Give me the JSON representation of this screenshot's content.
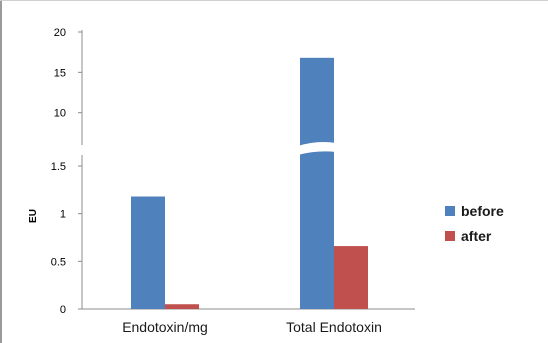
{
  "chart_data": {
    "type": "bar",
    "ylabel": "EU",
    "xlabel": "",
    "title": "",
    "axis_break": true,
    "break_segments": [
      {
        "ylim": [
          0,
          1.5
        ],
        "ticks": [
          "0",
          "0.5",
          "1",
          "1.5"
        ],
        "tick_values": [
          0,
          0.5,
          1,
          1.5
        ]
      },
      {
        "ylim": [
          5,
          20
        ],
        "ticks": [
          "10",
          "15",
          "20"
        ],
        "tick_values": [
          10,
          15,
          20
        ]
      }
    ],
    "categories": [
      "Endotoxin/mg",
      "Total Endotoxin"
    ],
    "series": [
      {
        "name": "before",
        "color": "#4f81bd",
        "values": [
          1.18,
          16.8
        ]
      },
      {
        "name": "after",
        "color": "#c0504d",
        "values": [
          0.05,
          0.66
        ]
      }
    ],
    "legend_position": "right",
    "grid": false
  }
}
